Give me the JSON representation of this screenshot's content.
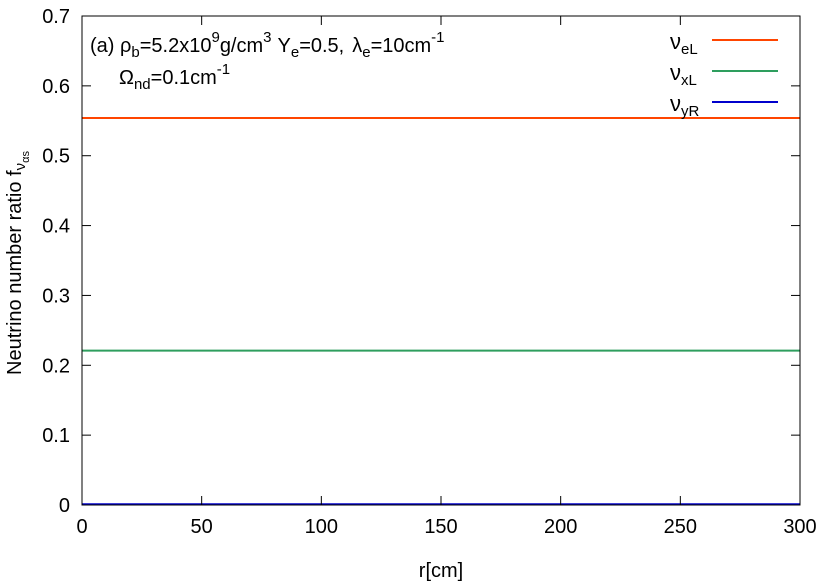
{
  "chart_data": {
    "type": "line",
    "xlabel": "r[cm]",
    "ylabel": {
      "main": "Neutrino number ratio f",
      "sub": "ν",
      "subsub": "αs"
    },
    "xlim": [
      0,
      300
    ],
    "ylim": [
      0,
      0.7
    ],
    "x_ticks": [
      "0",
      "50",
      "100",
      "150",
      "200",
      "250",
      "300"
    ],
    "y_ticks": [
      "0",
      "0.1",
      "0.2",
      "0.3",
      "0.4",
      "0.5",
      "0.6",
      "0.7"
    ],
    "grid": false,
    "legend_position": "top-right",
    "annotation": {
      "line1": {
        "prefix": "(a) ",
        "rho": "ρ",
        "rho_sub": "b",
        "rho_value": "=5.2x10",
        "rho_exp": "9",
        "rho_unit": "g/cm",
        "rho_unit_exp": "3",
        "ye": "Y",
        "ye_sub": "e",
        "ye_value": "=0.5,",
        "lambda": "λ",
        "lambda_sub": "e",
        "lambda_value": "=10cm",
        "lambda_exp": "-1"
      },
      "line2": {
        "omega": "Ω",
        "omega_sub": "nd",
        "omega_value": "=0.1cm",
        "omega_exp": "-1"
      }
    },
    "series": [
      {
        "name": "ν",
        "name_sub": "eL",
        "color": "#ff4500",
        "x": [
          0,
          300
        ],
        "y": [
          0.554,
          0.554
        ]
      },
      {
        "name": "ν",
        "name_sub": "xL",
        "color": "#2e9e5e",
        "x": [
          0,
          300
        ],
        "y": [
          0.221,
          0.221
        ]
      },
      {
        "name": "ν",
        "name_sub": "yR",
        "color": "#0000cc",
        "x": [
          0,
          300
        ],
        "y": [
          0.001,
          0.001
        ]
      }
    ]
  }
}
